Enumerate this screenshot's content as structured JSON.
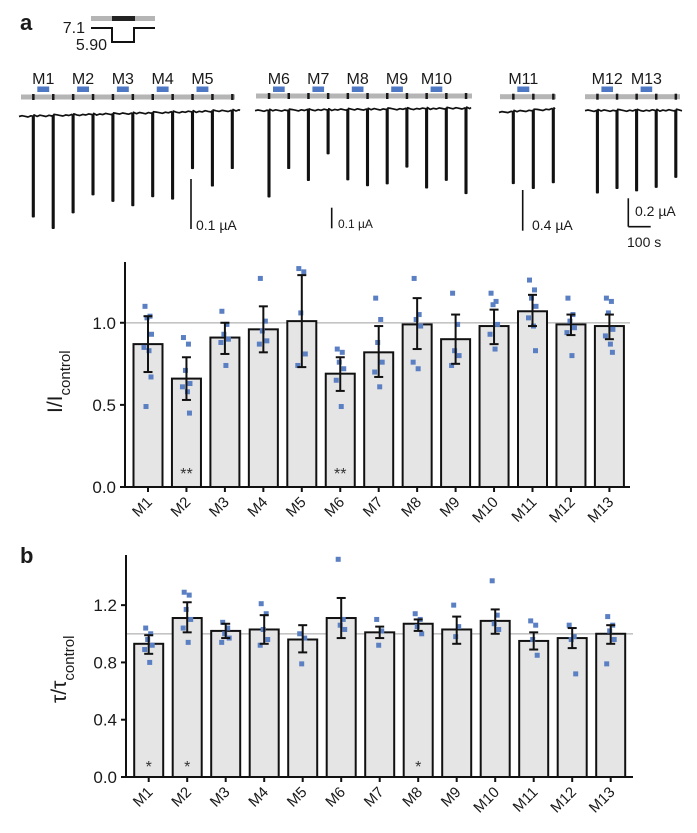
{
  "figure": {
    "panel_a_label": "a",
    "panel_b_label": "b",
    "colors": {
      "bar_fill": "#e5e5e5",
      "bar_stroke": "#111111",
      "data_point": "#5a7fc3",
      "modulator_bar": "#4f78c4",
      "protocol_bar": "#b5b5b5",
      "pulse_marker": "#1a1a1a",
      "reference_line": "#c4c4c4"
    },
    "protocol": {
      "high_ph_label": "7.1",
      "low_ph_label": "5.90"
    },
    "trace_groups": [
      {
        "modulators": [
          "M1",
          "M2",
          "M3",
          "M4",
          "M5"
        ],
        "pulse_count": 11,
        "modulator_after_pulse": [
          1,
          3,
          5,
          7,
          9
        ],
        "peak_amplitudes_uA": [
          0.201,
          0.225,
          0.195,
          0.16,
          0.174,
          0.184,
          0.167,
          0.173,
          0.113,
          0.149,
          0.115
        ],
        "scale_bar": {
          "current_label": "0.1 µA",
          "current_value_uA": 0.1
        }
      },
      {
        "modulators": [
          "M6",
          "M7",
          "M8",
          "M9",
          "M10"
        ],
        "pulse_count": 11,
        "modulator_after_pulse": [
          1,
          3,
          5,
          7,
          9
        ],
        "peak_amplitudes_uA": [
          0.418,
          0.281,
          0.34,
          0.212,
          0.339,
          0.369,
          0.361,
          0.281,
          0.383,
          0.347,
          0.413
        ],
        "scale_bar": {
          "current_label": "0.1 µA",
          "current_value_uA": 0.1
        }
      },
      {
        "modulators": [
          "M11"
        ],
        "pulse_count": 3,
        "modulator_after_pulse": [
          1
        ],
        "peak_amplitudes_uA": [
          0.705,
          0.764,
          0.72
        ],
        "scale_bar": {
          "current_label": "0.4 µA",
          "current_value_uA": 0.4
        }
      },
      {
        "modulators": [
          "M12",
          "M13"
        ],
        "pulse_count": 5,
        "modulator_after_pulse": [
          1,
          3
        ],
        "peak_amplitudes_uA": [
          0.577,
          0.546,
          0.563,
          0.539,
          0.469
        ],
        "scale_bar": {
          "current_label": "0.2 µA",
          "current_value_uA": 0.2,
          "time_label": "100 s",
          "time_value_s": 100
        }
      }
    ]
  },
  "chart_data": [
    {
      "type": "bar",
      "panel": "a",
      "title": "",
      "xlabel": "",
      "ylabel": "I/I",
      "ylabel_subscript": "control",
      "ylim": [
        0,
        1.37
      ],
      "yticks": [
        0,
        0.5,
        1.0
      ],
      "ytick_labels": [
        "0.0",
        "0.5",
        "1.0"
      ],
      "reference_line": 1.0,
      "grid": false,
      "legend": "none",
      "categories": [
        "M1",
        "M2",
        "M3",
        "M4",
        "M5",
        "M6",
        "M7",
        "M8",
        "M9",
        "M10",
        "M11",
        "M12",
        "M13"
      ],
      "values": [
        0.87,
        0.66,
        0.91,
        0.96,
        1.01,
        0.69,
        0.82,
        0.99,
        0.9,
        0.98,
        1.07,
        0.99,
        0.98
      ],
      "error_low": [
        0.7,
        0.53,
        0.81,
        0.82,
        0.73,
        0.585,
        0.67,
        0.84,
        0.75,
        0.87,
        0.98,
        0.925,
        0.9
      ],
      "error_high": [
        1.04,
        0.79,
        1.0,
        1.1,
        1.29,
        0.79,
        0.98,
        1.15,
        1.05,
        1.08,
        1.17,
        1.05,
        1.05
      ],
      "points": [
        [
          1.1,
          1.04,
          1.03,
          0.93,
          0.85,
          0.83,
          0.67,
          0.49
        ],
        [
          0.91,
          0.87,
          0.71,
          0.63,
          0.61,
          0.58,
          0.45
        ],
        [
          1.07,
          0.99,
          0.93,
          0.9,
          0.88,
          0.74
        ],
        [
          1.27,
          1.01,
          0.95,
          0.89,
          0.87
        ],
        [
          1.33,
          1.31,
          1.06,
          0.81,
          0.74
        ],
        [
          0.84,
          0.82,
          0.76,
          0.72,
          0.65,
          0.49
        ],
        [
          1.15,
          1.02,
          0.88,
          0.76,
          0.7,
          0.61
        ],
        [
          1.27,
          1.05,
          1.02,
          0.98,
          0.76,
          0.72
        ],
        [
          1.18,
          0.99,
          0.83,
          0.8,
          0.74
        ],
        [
          1.18,
          1.13,
          1.11,
          0.99,
          0.93,
          0.84
        ],
        [
          1.26,
          1.2,
          1.15,
          1.1,
          1.03,
          0.98,
          0.83
        ],
        [
          1.15,
          1.05,
          1.01,
          0.97,
          0.94,
          0.8
        ],
        [
          1.15,
          1.13,
          1.06,
          0.96,
          0.92,
          0.87,
          0.82
        ]
      ],
      "significance": [
        "",
        "**",
        "",
        "",
        "",
        "**",
        "",
        "",
        "",
        "",
        "",
        "",
        ""
      ]
    },
    {
      "type": "bar",
      "panel": "b",
      "title": "",
      "xlabel": "",
      "ylabel": "τ/τ",
      "ylabel_subscript": "control",
      "ylim": [
        0,
        1.55
      ],
      "yticks": [
        0,
        0.4,
        0.8,
        1.2
      ],
      "ytick_labels": [
        "0.0",
        "0.4",
        "0.8",
        "1.2"
      ],
      "reference_line": 1.0,
      "grid": false,
      "legend": "none",
      "categories": [
        "M1",
        "M2",
        "M3",
        "M4",
        "M5",
        "M6",
        "M7",
        "M8",
        "M9",
        "M10",
        "M11",
        "M12",
        "M13"
      ],
      "values": [
        0.93,
        1.11,
        1.02,
        1.03,
        0.96,
        1.11,
        1.01,
        1.07,
        1.03,
        1.09,
        0.95,
        0.97,
        1.0
      ],
      "error_low": [
        0.86,
        1.01,
        0.97,
        0.93,
        0.87,
        0.97,
        0.97,
        1.02,
        0.93,
        1.0,
        0.89,
        0.9,
        0.93
      ],
      "error_high": [
        0.99,
        1.22,
        1.07,
        1.13,
        1.06,
        1.25,
        1.05,
        1.1,
        1.12,
        1.17,
        1.01,
        1.04,
        1.06
      ],
      "points": [
        [
          1.04,
          1.0,
          0.96,
          0.92,
          0.89,
          0.8
        ],
        [
          1.29,
          1.27,
          1.17,
          1.1,
          1.04,
          0.94
        ],
        [
          1.08,
          1.04,
          1.0,
          0.97,
          0.94
        ],
        [
          1.21,
          1.14,
          1.03,
          0.96,
          0.92
        ],
        [
          1.0,
          0.97,
          0.79
        ],
        [
          1.52,
          1.1,
          1.06,
          1.03
        ],
        [
          1.1,
          1.02,
          0.92
        ],
        [
          1.14,
          1.1,
          1.05,
          1.0
        ],
        [
          1.2,
          1.05,
          0.98
        ],
        [
          1.37,
          1.13,
          1.07,
          1.03
        ],
        [
          1.09,
          1.06,
          0.96,
          0.85
        ],
        [
          1.06,
          0.98,
          0.96,
          0.72
        ],
        [
          1.12,
          1.06,
          1.02,
          0.96,
          0.79
        ]
      ],
      "significance": [
        "*",
        "*",
        "",
        "",
        "",
        "",
        "",
        "*",
        "",
        "",
        "",
        "",
        ""
      ]
    }
  ]
}
